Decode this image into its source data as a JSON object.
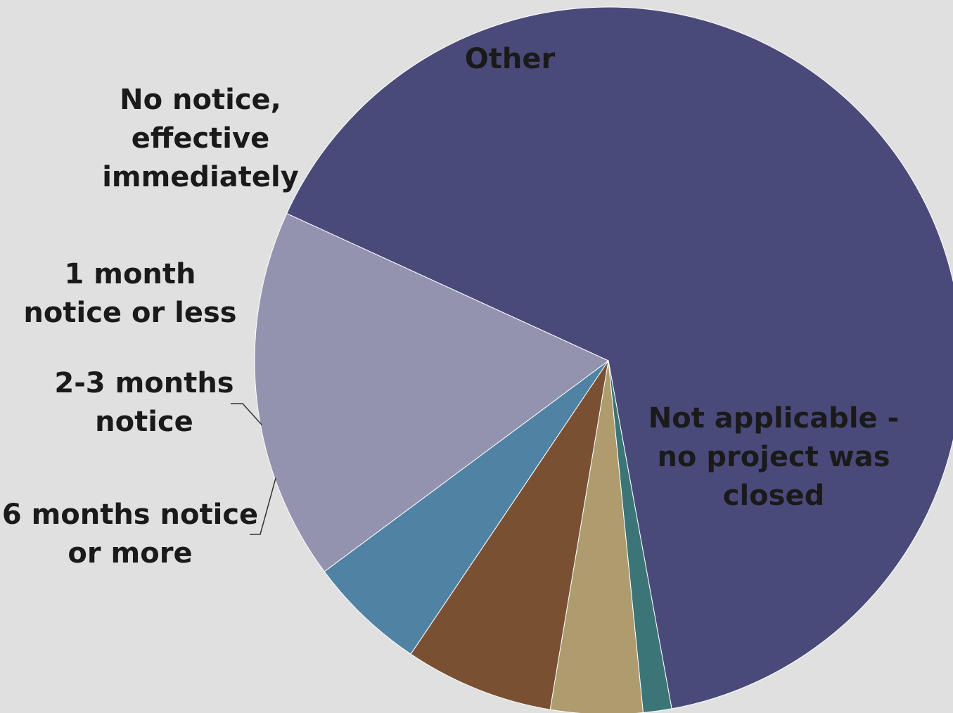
{
  "chart_data": {
    "type": "pie",
    "slices": [
      {
        "label": "Not applicable - no project was closed",
        "label_lines": [
          "Not applicable -",
          "no project was",
          "closed"
        ],
        "value": 65.3,
        "color": "#4a4a7a"
      },
      {
        "label": "6 months notice or more",
        "label_lines": [
          "6 months notice",
          "or more"
        ],
        "value": 1.3,
        "color": "#3b7577"
      },
      {
        "label": "2-3 months notice",
        "label_lines": [
          "2-3 months",
          "notice"
        ],
        "value": 4.2,
        "color": "#ae9b6e"
      },
      {
        "label": "1 month notice or less",
        "label_lines": [
          "1 month",
          "notice or less"
        ],
        "value": 6.8,
        "color": "#7a5033"
      },
      {
        "label": "No notice, effective immediately",
        "label_lines": [
          "No notice,",
          "effective",
          "immediately"
        ],
        "value": 5.4,
        "color": "#5082a3"
      },
      {
        "label": "Other",
        "label_lines": [
          "Other"
        ],
        "value": 17.0,
        "color": "#9393b0"
      }
    ]
  }
}
